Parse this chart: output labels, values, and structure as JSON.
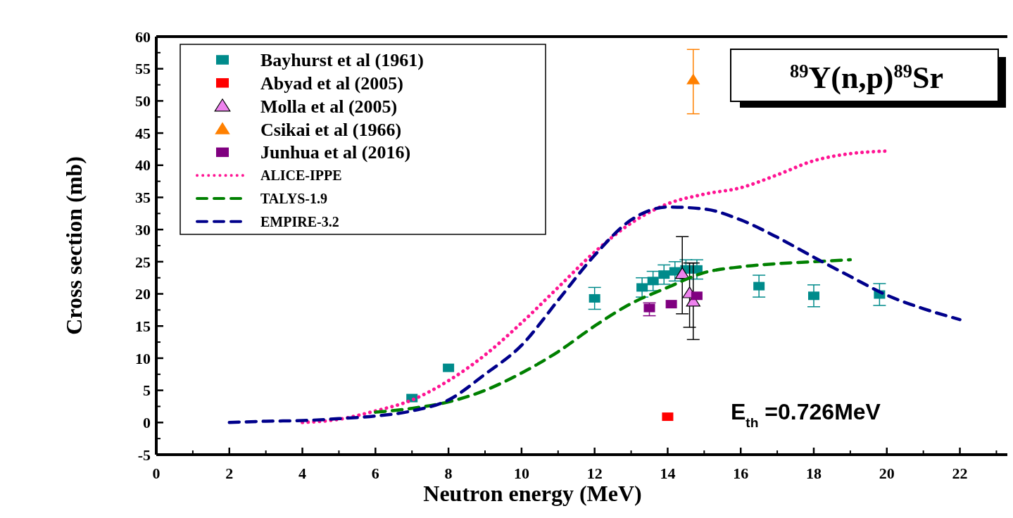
{
  "chart_data": {
    "type": "scatter",
    "xlabel": "Neutron energy (MeV)",
    "ylabel": "Cross section (mb)",
    "xlim": [
      0,
      23.3
    ],
    "ylim": [
      -5,
      60
    ],
    "xticks": [
      0,
      2,
      4,
      6,
      8,
      10,
      12,
      14,
      16,
      18,
      20,
      22
    ],
    "yticks": [
      -5,
      0,
      5,
      10,
      15,
      20,
      25,
      30,
      35,
      40,
      45,
      50,
      55,
      60
    ],
    "legend": "top left",
    "annotations": [
      "$^{89}$Y(n,p)$^{89}$Sr",
      "E$_{th}$ =0.726MeV"
    ],
    "series": [
      {
        "name": "Bayhurst et al (1961)",
        "marker": "square",
        "color": "#008b8b",
        "x": [
          7,
          8,
          12,
          13.3,
          13.6,
          13.9,
          14.2,
          14.5,
          14.8,
          16.5,
          18,
          19.8
        ],
        "values": [
          3.8,
          8.5,
          19.3,
          21.0,
          22.0,
          23.0,
          23.5,
          23.8,
          23.8,
          21.2,
          19.7,
          19.9
        ],
        "errors": [
          null,
          null,
          1.7,
          1.5,
          1.5,
          1.5,
          1.5,
          1.5,
          1.5,
          1.7,
          1.7,
          1.7
        ]
      },
      {
        "name": "Abyad et al (2005)",
        "marker": "square",
        "color": "#ff0000",
        "x": [
          14.0
        ],
        "values": [
          0.9
        ]
      },
      {
        "name": "Molla et al (2005)",
        "marker": "triangle",
        "color": "#ee82ee",
        "x": [
          14.4,
          14.6,
          14.7
        ],
        "values": [
          23.1,
          20.1,
          18.8
        ],
        "errors": [
          [
            16.9,
            28.9
          ],
          [
            14.8,
            24.8
          ],
          [
            12.9,
            24.8
          ]
        ]
      },
      {
        "name": "Csikai et al (1966)",
        "marker": "triangle",
        "color": "#ff8000",
        "x": [
          14.7
        ],
        "values": [
          53.3
        ],
        "errors": [
          [
            48,
            58
          ]
        ]
      },
      {
        "name": "Junhua et al (2016)",
        "marker": "square",
        "color": "#800080",
        "x": [
          13.5,
          14.1,
          14.8
        ],
        "values": [
          17.8,
          18.4,
          19.7
        ],
        "errors": [
          [
            16.6,
            18.6
          ],
          null,
          null
        ]
      },
      {
        "name": "ALICE-IPPE",
        "type": "line",
        "line_style": "dotted",
        "color": "#ff1493",
        "x": [
          4,
          5,
          6,
          7,
          8,
          9,
          10,
          11,
          12,
          13,
          14,
          15,
          16,
          17,
          18,
          19,
          20
        ],
        "values": [
          0,
          0.5,
          1.8,
          3.5,
          6.5,
          10.5,
          15.5,
          21,
          26.5,
          31,
          34,
          35.5,
          36.5,
          38.5,
          40.7,
          41.8,
          42.2
        ]
      },
      {
        "name": "TALYS-1.9",
        "type": "line",
        "line_style": "dashed",
        "color": "#008000",
        "x": [
          6,
          7,
          8,
          9,
          10,
          11,
          12,
          13,
          14,
          15,
          16,
          17,
          18,
          19
        ],
        "values": [
          1.6,
          2.2,
          3.2,
          5,
          7.7,
          11,
          15,
          18.5,
          21,
          23.3,
          24.2,
          24.7,
          25,
          25.3
        ]
      },
      {
        "name": "EMPIRE-3.2",
        "type": "line",
        "line_style": "dashed",
        "color": "#00008b",
        "x": [
          2,
          3,
          4,
          5,
          6,
          7,
          8,
          9,
          10,
          11,
          12,
          13,
          14,
          15,
          16,
          17,
          18,
          19,
          20,
          21,
          22
        ],
        "values": [
          0,
          0.2,
          0.3,
          0.6,
          1,
          1.8,
          3.5,
          7.5,
          12,
          19,
          26,
          31.5,
          33.5,
          33.2,
          31.5,
          28.8,
          25.7,
          22.7,
          19.8,
          17.7,
          16
        ]
      }
    ]
  }
}
